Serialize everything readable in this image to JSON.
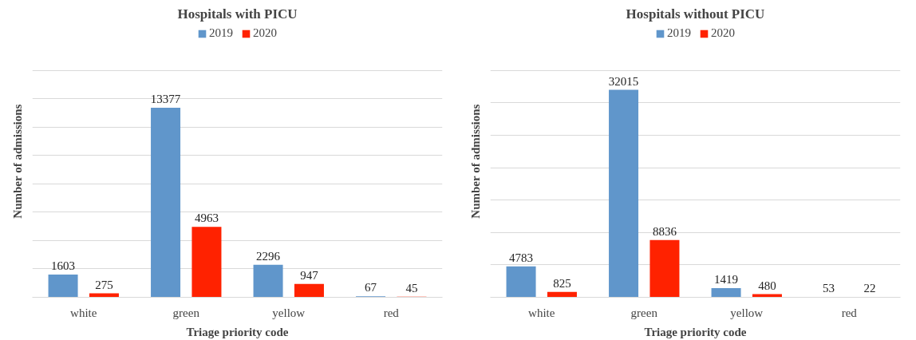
{
  "chart_data": [
    {
      "type": "bar",
      "title": "Hospitals with PICU",
      "xlabel": "Triage priority code",
      "ylabel": "Number of admissions",
      "categories": [
        "white",
        "green",
        "yellow",
        "red"
      ],
      "series": [
        {
          "name": "2019",
          "color": "#6096cb",
          "values": [
            1603,
            13377,
            2296,
            67
          ]
        },
        {
          "name": "2020",
          "color": "#ff2200",
          "values": [
            275,
            4963,
            947,
            45
          ]
        }
      ],
      "yticks": [
        {
          "value": 0,
          "label": null
        },
        {
          "value": 2000,
          "label": null
        },
        {
          "value": 4000,
          "label": null
        },
        {
          "value": 6000,
          "label": null
        },
        {
          "value": 8000,
          "label": null
        },
        {
          "value": 10000,
          "label": null
        },
        {
          "value": 12000,
          "label": null
        },
        {
          "value": 14000,
          "label": null
        },
        {
          "value": 16000,
          "label": null
        }
      ],
      "grid": "y",
      "legend": "top",
      "data_labels": true
    },
    {
      "type": "bar",
      "title": "Hospitals without PICU",
      "xlabel": "Triage priority code",
      "ylabel": "Number of admissions",
      "categories": [
        "white",
        "green",
        "yellow",
        "red"
      ],
      "series": [
        {
          "name": "2019",
          "color": "#6096cb",
          "values": [
            4783,
            32015,
            1419,
            53
          ]
        },
        {
          "name": "2020",
          "color": "#ff2200",
          "values": [
            825,
            8836,
            480,
            22
          ]
        }
      ],
      "yticks": [
        {
          "value": 0,
          "label": null
        },
        {
          "value": 5000,
          "label": null
        },
        {
          "value": 10000,
          "label": null
        },
        {
          "value": 15000,
          "label": null
        },
        {
          "value": 20000,
          "label": null
        },
        {
          "value": 25000,
          "label": null
        },
        {
          "value": 30000,
          "label": null
        },
        {
          "value": 35000,
          "label": null
        }
      ],
      "grid": "y",
      "legend": "top",
      "data_labels": true
    }
  ]
}
